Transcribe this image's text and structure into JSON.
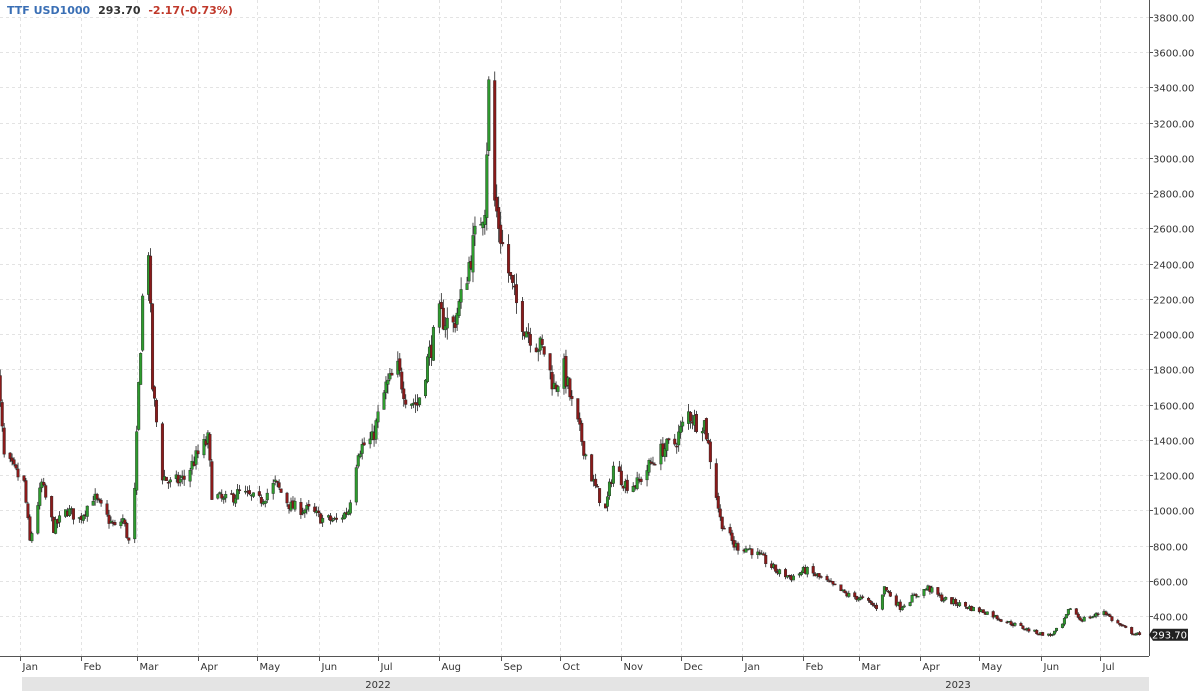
{
  "header": {
    "symbol": "TTF USD1000",
    "last": "293.70",
    "change": "-2.17(-0.73%)"
  },
  "colors": {
    "up": "#2e9b2e",
    "down": "#8b1a1a",
    "symbol": "#3a6fb5",
    "change": "#c0392b",
    "grid": "#e3e3e3",
    "badge": "#222222"
  },
  "chart_data": {
    "type": "candlestick",
    "title": "TTF USD1000",
    "xlabel": "",
    "ylabel": "",
    "ylim": [
      200,
      3850
    ],
    "grid": true,
    "y_ticks": [
      "3800.00",
      "3600.00",
      "3400.00",
      "3200.00",
      "3000.00",
      "2800.00",
      "2600.00",
      "2400.00",
      "2200.00",
      "2000.00",
      "1800.00",
      "1600.00",
      "1400.00",
      "1200.00",
      "1000.00",
      "800.00",
      "600.00",
      "400.00"
    ],
    "x_ticks": [
      "Jan",
      "Feb",
      "Mar",
      "Apr",
      "May",
      "Jun",
      "Jul",
      "Aug",
      "Sep",
      "Oct",
      "Nov",
      "Dec",
      "Jan",
      "Feb",
      "Mar",
      "Apr",
      "May",
      "Jun",
      "Jul"
    ],
    "years": [
      "2022",
      "2023"
    ],
    "last_price_label": "293.70",
    "series_path": [
      [
        "2021-12-20",
        1880
      ],
      [
        "2021-12-24",
        1300
      ],
      [
        "2022-01-03",
        1150
      ],
      [
        "2022-01-06",
        820
      ],
      [
        "2022-01-12",
        1150
      ],
      [
        "2022-01-18",
        900
      ],
      [
        "2022-01-25",
        1000
      ],
      [
        "2022-01-31",
        950
      ],
      [
        "2022-02-07",
        1080
      ],
      [
        "2022-02-14",
        960
      ],
      [
        "2022-02-18",
        900
      ],
      [
        "2022-02-22",
        950
      ],
      [
        "2022-02-25",
        820
      ],
      [
        "2022-02-28",
        1100
      ],
      [
        "2022-03-02",
        1700
      ],
      [
        "2022-03-04",
        2200
      ],
      [
        "2022-03-07",
        2500
      ],
      [
        "2022-03-09",
        1700
      ],
      [
        "2022-03-14",
        1200
      ],
      [
        "2022-03-18",
        1150
      ],
      [
        "2022-03-25",
        1180
      ],
      [
        "2022-03-31",
        1300
      ],
      [
        "2022-04-06",
        1400
      ],
      [
        "2022-04-08",
        1100
      ],
      [
        "2022-04-14",
        1050
      ],
      [
        "2022-04-22",
        1100
      ],
      [
        "2022-05-02",
        1050
      ],
      [
        "2022-05-10",
        1150
      ],
      [
        "2022-05-18",
        1020
      ],
      [
        "2022-05-27",
        1000
      ],
      [
        "2022-06-03",
        950
      ],
      [
        "2022-06-10",
        940
      ],
      [
        "2022-06-16",
        1000
      ],
      [
        "2022-06-21",
        1350
      ],
      [
        "2022-06-28",
        1400
      ],
      [
        "2022-07-05",
        1700
      ],
      [
        "2022-07-11",
        1800
      ],
      [
        "2022-07-15",
        1650
      ],
      [
        "2022-07-21",
        1600
      ],
      [
        "2022-07-26",
        1850
      ],
      [
        "2022-08-01",
        2100
      ],
      [
        "2022-08-08",
        2050
      ],
      [
        "2022-08-12",
        2200
      ],
      [
        "2022-08-18",
        2500
      ],
      [
        "2022-08-24",
        2750
      ],
      [
        "2022-08-26",
        3400
      ],
      [
        "2022-08-29",
        2750
      ],
      [
        "2022-09-02",
        2500
      ],
      [
        "2022-09-08",
        2200
      ],
      [
        "2022-09-13",
        2050
      ],
      [
        "2022-09-19",
        1950
      ],
      [
        "2022-09-23",
        1900
      ],
      [
        "2022-09-28",
        1700
      ],
      [
        "2022-10-03",
        1800
      ],
      [
        "2022-10-07",
        1600
      ],
      [
        "2022-10-12",
        1400
      ],
      [
        "2022-10-18",
        1150
      ],
      [
        "2022-10-24",
        1000
      ],
      [
        "2022-10-28",
        1250
      ],
      [
        "2022-11-03",
        1150
      ],
      [
        "2022-11-09",
        1150
      ],
      [
        "2022-11-15",
        1250
      ],
      [
        "2022-11-22",
        1350
      ],
      [
        "2022-11-28",
        1380
      ],
      [
        "2022-12-05",
        1550
      ],
      [
        "2022-12-09",
        1500
      ],
      [
        "2022-12-13",
        1500
      ],
      [
        "2022-12-16",
        1300
      ],
      [
        "2022-12-21",
        950
      ],
      [
        "2022-12-28",
        800
      ],
      [
        "2023-01-05",
        780
      ],
      [
        "2023-01-12",
        720
      ],
      [
        "2023-01-19",
        650
      ],
      [
        "2023-01-26",
        620
      ],
      [
        "2023-02-02",
        660
      ],
      [
        "2023-02-09",
        620
      ],
      [
        "2023-02-16",
        570
      ],
      [
        "2023-02-23",
        520
      ],
      [
        "2023-03-02",
        500
      ],
      [
        "2023-03-10",
        450
      ],
      [
        "2023-03-14",
        560
      ],
      [
        "2023-03-22",
        450
      ],
      [
        "2023-03-30",
        520
      ],
      [
        "2023-04-05",
        560
      ],
      [
        "2023-04-12",
        500
      ],
      [
        "2023-04-20",
        470
      ],
      [
        "2023-04-28",
        440
      ],
      [
        "2023-05-05",
        420
      ],
      [
        "2023-05-12",
        380
      ],
      [
        "2023-05-19",
        350
      ],
      [
        "2023-05-26",
        320
      ],
      [
        "2023-06-01",
        300
      ],
      [
        "2023-06-06",
        290
      ],
      [
        "2023-06-12",
        350
      ],
      [
        "2023-06-16",
        450
      ],
      [
        "2023-06-21",
        380
      ],
      [
        "2023-06-28",
        400
      ],
      [
        "2023-07-03",
        430
      ],
      [
        "2023-07-07",
        380
      ],
      [
        "2023-07-12",
        340
      ],
      [
        "2023-07-18",
        300
      ],
      [
        "2023-07-21",
        293.7
      ]
    ]
  }
}
